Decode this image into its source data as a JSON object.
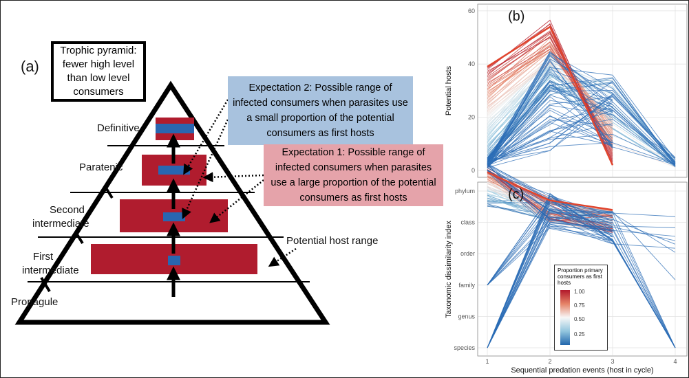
{
  "panel_a": {
    "letter": "(a)",
    "trophic_box": "Trophic pyramid: fewer high level than low level consumers",
    "expectation2": "Expectation 2: Possible range of infected consumers when parasites use a small proportion of the potential consumers as first hosts",
    "expectation1": "Expectation 1: Possible range of infected consumers when parasites use a large proportion of the potential consumers as first hosts",
    "potential_host_range": "Potential host range",
    "levels": {
      "definitive": "Definitive",
      "paratenic": "Paratenic",
      "second_line1": "Second",
      "second_line2": "intermediate",
      "first_line1": "First",
      "first_line2": "intermediate",
      "propagule": "Propagule"
    },
    "colors": {
      "red": "#b01c2e",
      "blue": "#2966b0",
      "blue_box": "#a8c2de",
      "pink_box": "#e5a3aa"
    }
  },
  "panel_b": {
    "letter": "(b)",
    "ylabel": "Potential hosts",
    "yticks": [
      "0",
      "20",
      "40",
      "60"
    ]
  },
  "panel_c": {
    "letter": "(c)",
    "ylabel": "Taxonomic dissimilarity index",
    "yticks": [
      "species",
      "genus",
      "family",
      "order",
      "class",
      "phylum"
    ]
  },
  "x_axis": {
    "label": "Sequential predation events (host in cycle)",
    "ticks": [
      "1",
      "2",
      "3",
      "4"
    ]
  },
  "legend": {
    "title": "Proportion primary consumers as first hosts",
    "ticks": [
      "1.00",
      "0.75",
      "0.50",
      "0.25"
    ]
  },
  "chart_data": [
    {
      "type": "line",
      "x": [
        1,
        2,
        3,
        4
      ],
      "ylabel": "Potential hosts",
      "xlabel": "Sequential predation events (host in cycle)",
      "ylim": [
        0,
        60
      ],
      "series": [
        {
          "values": [
            39,
            54,
            2,
            null
          ]
        },
        {
          "values": [
            2,
            30,
            25,
            1
          ]
        },
        {
          "values": [
            1,
            22,
            30,
            1
          ]
        }
      ]
    },
    {
      "type": "line",
      "x": [
        1,
        2,
        3,
        4
      ],
      "ylabel": "Taxonomic dissimilarity index",
      "xlabel": "Sequential predation events (host in cycle)",
      "yticks": [
        "species",
        "genus",
        "family",
        "order",
        "class",
        "phylum"
      ],
      "series": [
        {
          "values": [
            5.6,
            4.7,
            4.4,
            null
          ]
        },
        {
          "values": [
            6,
            5,
            4,
            1
          ]
        },
        {
          "values": [
            1,
            5,
            4,
            1
          ]
        }
      ]
    }
  ]
}
